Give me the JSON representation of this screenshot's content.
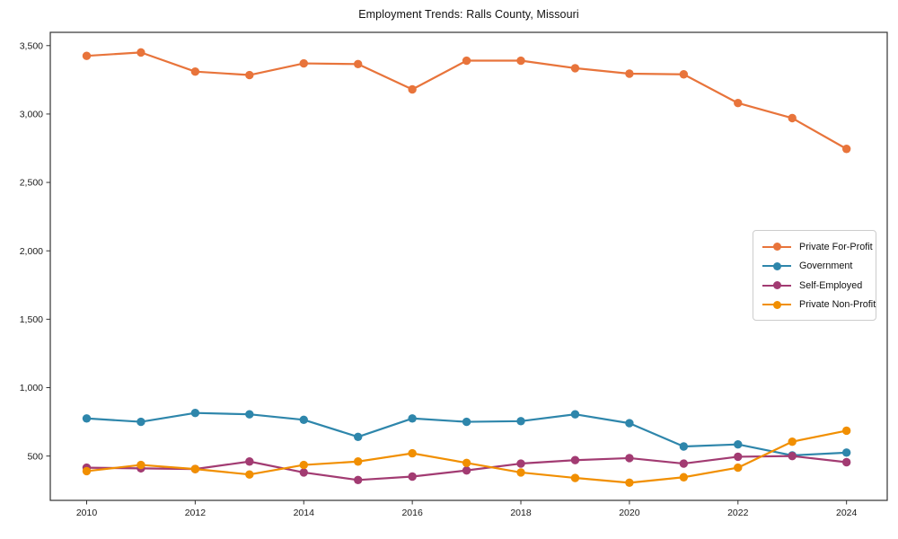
{
  "chart_data": {
    "type": "line",
    "title": "Employment Trends: Ralls County, Missouri",
    "xlabel": "",
    "ylabel": "",
    "grid": false,
    "legend_position": "center right",
    "xlim": [
      2009.33,
      2024.75
    ],
    "ylim": [
      176,
      3597
    ],
    "x": [
      2010,
      2011,
      2012,
      2013,
      2014,
      2015,
      2016,
      2017,
      2018,
      2019,
      2020,
      2021,
      2022,
      2023,
      2024
    ],
    "x_ticks": [
      2010,
      2012,
      2014,
      2016,
      2018,
      2020,
      2022,
      2024
    ],
    "x_tick_labels": [
      "2010",
      "2012",
      "2014",
      "2016",
      "2018",
      "2020",
      "2022",
      "2024"
    ],
    "y_ticks": [
      500,
      1000,
      1500,
      2000,
      2500,
      3000,
      3500
    ],
    "y_tick_labels": [
      "500",
      "1,000",
      "1,500",
      "2,000",
      "2,500",
      "3,000",
      "3,500"
    ],
    "series": [
      {
        "name": "Private For-Profit",
        "color": "#e8743b",
        "values": [
          3425,
          3450,
          3310,
          3285,
          3370,
          3365,
          3180,
          3390,
          3390,
          3335,
          3295,
          3290,
          3080,
          2970,
          2745
        ]
      },
      {
        "name": "Government",
        "color": "#2e86ab",
        "values": [
          775,
          750,
          815,
          805,
          765,
          640,
          775,
          750,
          755,
          805,
          740,
          570,
          585,
          505,
          525
        ]
      },
      {
        "name": "Self-Employed",
        "color": "#a23b72",
        "values": [
          415,
          410,
          405,
          460,
          380,
          325,
          350,
          395,
          445,
          470,
          485,
          445,
          495,
          500,
          455
        ]
      },
      {
        "name": "Private Non-Profit",
        "color": "#f18f01",
        "values": [
          390,
          435,
          405,
          365,
          435,
          460,
          520,
          450,
          380,
          340,
          305,
          345,
          415,
          605,
          685
        ]
      }
    ]
  }
}
